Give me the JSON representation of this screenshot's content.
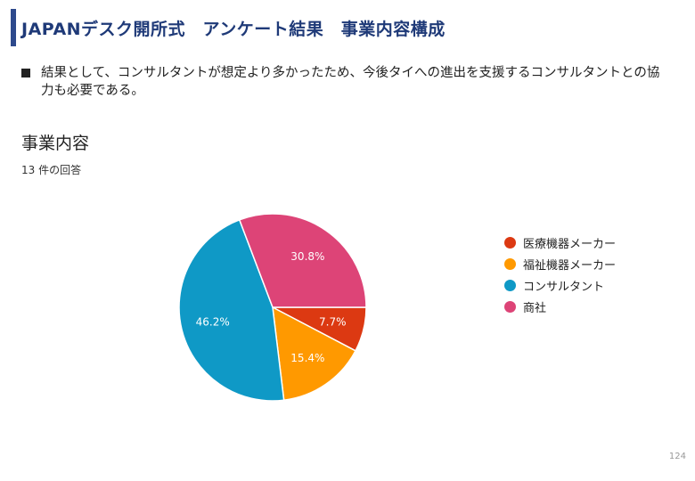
{
  "slide": {
    "title": "JAPANデスク開所式　アンケート結果　事業内容構成",
    "bullet": "結果として、コンサルタントが想定より多かったため、今後タイへの進出を支援するコンサルタントとの協力も必要である。",
    "page_number": "124"
  },
  "chart_data": {
    "type": "pie",
    "title": "事業内容",
    "subtitle": "13 件の回答",
    "categories": [
      "医療機器メーカー",
      "福祉機器メーカー",
      "コンサルタント",
      "商社"
    ],
    "values": [
      1,
      2,
      6,
      4
    ],
    "percent_labels": [
      "7.7%",
      "15.4%",
      "46.2%",
      "30.8%"
    ],
    "colors": [
      "#dc3912",
      "#ff9900",
      "#0f99c6",
      "#dd4477"
    ],
    "legend_position": "right",
    "start_angle_deg": 90,
    "direction": "clockwise"
  }
}
